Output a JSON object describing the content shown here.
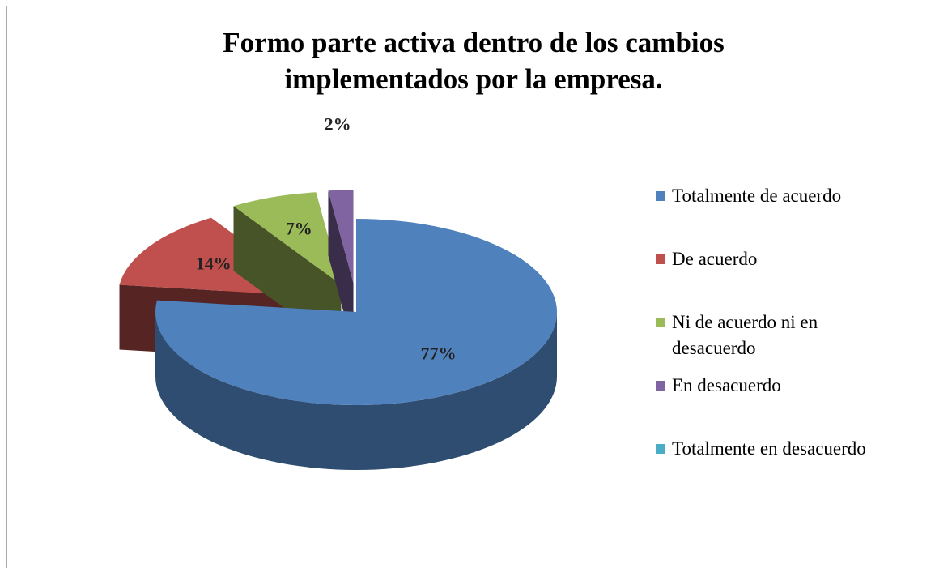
{
  "chart_data": {
    "type": "pie3d",
    "title": "Formo parte activa dentro de los cambios implementados por la empresa.",
    "categories": [
      "Totalmente de acuerdo",
      "De acuerdo",
      "Ni de acuerdo  ni en desacuerdo",
      "En desacuerdo",
      "Totalmente en desacuerdo"
    ],
    "values": [
      77,
      14,
      7,
      2,
      0
    ],
    "value_labels": [
      "77%",
      "14%",
      "7%",
      "2%",
      null
    ],
    "colors": [
      "#4f81bd",
      "#c0504d",
      "#9bbb59",
      "#8064a2",
      "#4bacc6"
    ],
    "legend": "right"
  }
}
